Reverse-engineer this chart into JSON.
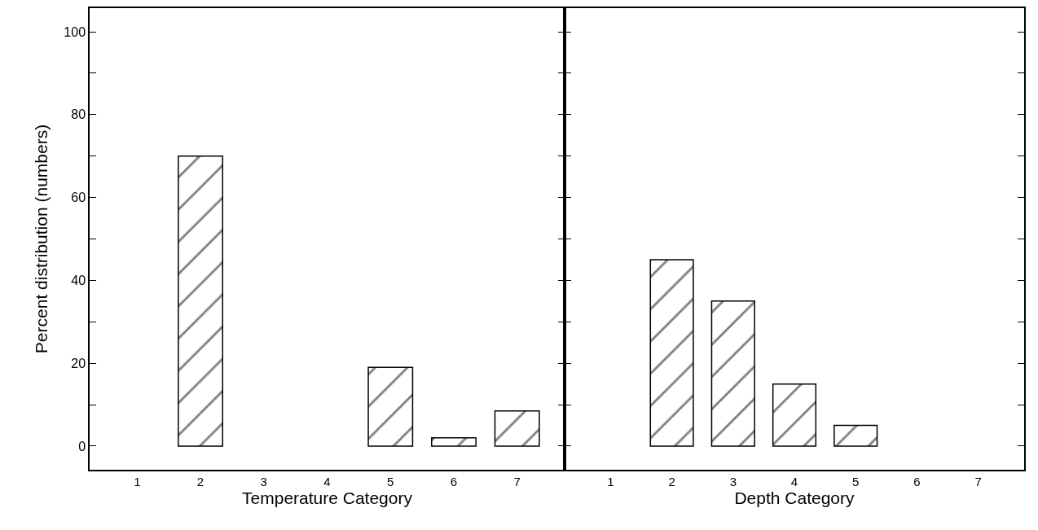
{
  "chart_data": [
    {
      "type": "bar",
      "categories": [
        "1",
        "2",
        "3",
        "4",
        "5",
        "6",
        "7"
      ],
      "values": [
        null,
        70,
        null,
        null,
        19,
        2,
        8.5
      ],
      "color": "#000000",
      "xlabel": "Temperature Category",
      "ylabel": "Percent distribution (numbers)",
      "ylim": [
        -5.7,
        105.7
      ],
      "yticks": [
        0,
        {
          "value": 10,
          "label": null
        },
        20,
        {
          "value": 30,
          "label": null
        },
        40,
        {
          "value": 50,
          "label": null
        },
        60,
        {
          "value": 70,
          "label": null
        },
        80,
        {
          "value": 90,
          "label": null
        },
        100
      ]
    },
    {
      "type": "bar",
      "categories": [
        "1",
        "2",
        "3",
        "4",
        "5",
        "6",
        "7"
      ],
      "values": [
        null,
        45,
        35,
        15,
        5,
        null,
        null
      ],
      "color": "#000000",
      "xlabel": "Depth Category",
      "ylim": [
        -5.7,
        105.7
      ],
      "yticks": [
        0,
        {
          "value": 10,
          "label": null
        },
        20,
        {
          "value": 30,
          "label": null
        },
        40,
        {
          "value": 50,
          "label": null
        },
        60,
        {
          "value": 70,
          "label": null
        },
        80,
        {
          "value": 90,
          "label": null
        },
        100
      ],
      "tick_labels": "x"
    }
  ]
}
